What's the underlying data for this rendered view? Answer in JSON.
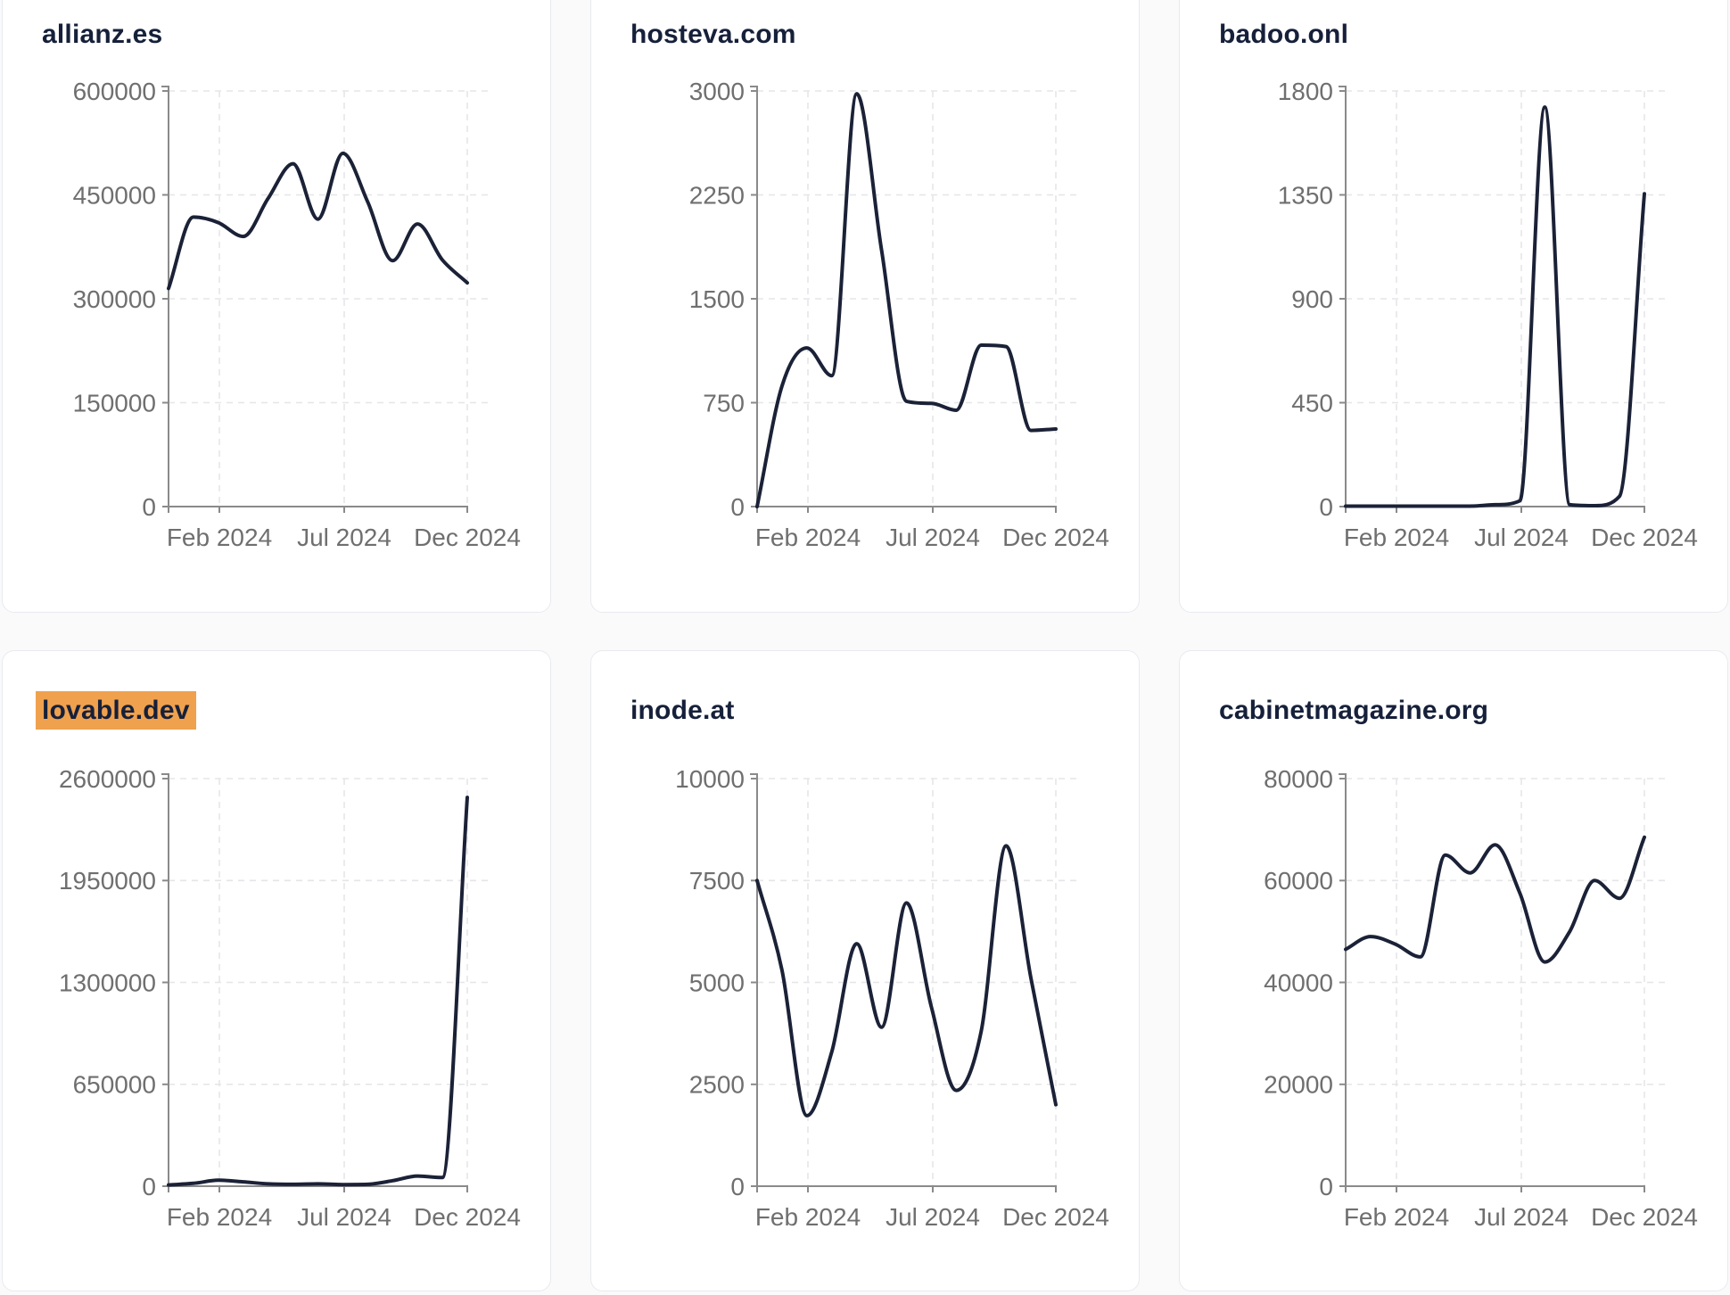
{
  "page": {
    "background": "#fafafa",
    "card_background": "#ffffff",
    "card_border": "#e8eaf0"
  },
  "styles": {
    "line_color": "#1b2237",
    "axis_color": "#8a8a8a",
    "tick_text_color": "#6f6f6f",
    "grid_color": "#e6e6e9",
    "title_color": "#16203a",
    "highlight_color": "#efa14e"
  },
  "x_tick_labels": [
    "Feb 2024",
    "Jul 2024",
    "Dec 2024"
  ],
  "chart_data": [
    {
      "type": "line",
      "title": "allianz.es",
      "highlighted": false,
      "x_months": [
        "Dec 2023",
        "Jan 2024",
        "Feb 2024",
        "Mar 2024",
        "Apr 2024",
        "May 2024",
        "Jun 2024",
        "Jul 2024",
        "Aug 2024",
        "Sep 2024",
        "Oct 2024",
        "Nov 2024",
        "Dec 2024"
      ],
      "values": [
        315000,
        418000,
        410000,
        390000,
        445000,
        495000,
        415000,
        510000,
        440000,
        355000,
        408000,
        356000,
        323000
      ],
      "y_ticks": [
        0,
        150000,
        300000,
        450000,
        600000
      ],
      "ylim": [
        0,
        600000
      ],
      "x_axis_tick_labels": [
        "Feb 2024",
        "Jul 2024",
        "Dec 2024"
      ],
      "grid": true,
      "legend": false
    },
    {
      "type": "line",
      "title": "hosteva.com",
      "highlighted": false,
      "x_months": [
        "Dec 2023",
        "Jan 2024",
        "Feb 2024",
        "Mar 2024",
        "Apr 2024",
        "May 2024",
        "Jun 2024",
        "Jul 2024",
        "Aug 2024",
        "Sep 2024",
        "Oct 2024",
        "Nov 2024",
        "Dec 2024"
      ],
      "values": [
        0,
        870,
        1145,
        945,
        2980,
        1850,
        760,
        745,
        695,
        1165,
        1155,
        550,
        560
      ],
      "y_ticks": [
        0,
        750,
        1500,
        2250,
        3000
      ],
      "ylim": [
        0,
        3000
      ],
      "x_axis_tick_labels": [
        "Feb 2024",
        "Jul 2024",
        "Dec 2024"
      ],
      "grid": true,
      "legend": false
    },
    {
      "type": "line",
      "title": "badoo.onl",
      "highlighted": false,
      "x_months": [
        "Dec 2023",
        "Jan 2024",
        "Feb 2024",
        "Mar 2024",
        "Apr 2024",
        "May 2024",
        "Jun 2024",
        "Jul 2024",
        "Aug 2024",
        "Sep 2024",
        "Oct 2024",
        "Nov 2024",
        "Dec 2024"
      ],
      "values": [
        2,
        2,
        2,
        2,
        2,
        2,
        8,
        25,
        1730,
        8,
        4,
        45,
        1355
      ],
      "y_ticks": [
        0,
        450,
        900,
        1350,
        1800
      ],
      "ylim": [
        0,
        1800
      ],
      "x_axis_tick_labels": [
        "Feb 2024",
        "Jul 2024",
        "Dec 2024"
      ],
      "grid": true,
      "legend": false
    },
    {
      "type": "line",
      "title": "lovable.dev",
      "highlighted": true,
      "x_months": [
        "Dec 2023",
        "Jan 2024",
        "Feb 2024",
        "Mar 2024",
        "Apr 2024",
        "May 2024",
        "Jun 2024",
        "Jul 2024",
        "Aug 2024",
        "Sep 2024",
        "Oct 2024",
        "Nov 2024",
        "Dec 2024"
      ],
      "values": [
        8000,
        18000,
        38000,
        28000,
        15000,
        12000,
        15000,
        10000,
        12000,
        35000,
        65000,
        55000,
        2480000
      ],
      "y_ticks": [
        0,
        650000,
        1300000,
        1950000,
        2600000
      ],
      "ylim": [
        0,
        2600000
      ],
      "x_axis_tick_labels": [
        "Feb 2024",
        "Jul 2024",
        "Dec 2024"
      ],
      "grid": true,
      "legend": false
    },
    {
      "type": "line",
      "title": "inode.at",
      "highlighted": false,
      "x_months": [
        "Dec 2023",
        "Jan 2024",
        "Feb 2024",
        "Mar 2024",
        "Apr 2024",
        "May 2024",
        "Jun 2024",
        "Jul 2024",
        "Aug 2024",
        "Sep 2024",
        "Oct 2024",
        "Nov 2024",
        "Dec 2024"
      ],
      "values": [
        7500,
        5300,
        1730,
        3300,
        5950,
        3900,
        6950,
        4400,
        2350,
        3800,
        8350,
        5100,
        2000
      ],
      "y_ticks": [
        0,
        2500,
        5000,
        7500,
        10000
      ],
      "ylim": [
        0,
        10000
      ],
      "x_axis_tick_labels": [
        "Feb 2024",
        "Jul 2024",
        "Dec 2024"
      ],
      "grid": true,
      "legend": false
    },
    {
      "type": "line",
      "title": "cabinetmagazine.org",
      "highlighted": false,
      "x_months": [
        "Dec 2023",
        "Jan 2024",
        "Feb 2024",
        "Mar 2024",
        "Apr 2024",
        "May 2024",
        "Jun 2024",
        "Jul 2024",
        "Aug 2024",
        "Sep 2024",
        "Oct 2024",
        "Nov 2024",
        "Dec 2024"
      ],
      "values": [
        46500,
        49000,
        47500,
        45000,
        65000,
        61500,
        67000,
        57500,
        44000,
        50000,
        60000,
        56500,
        68500
      ],
      "y_ticks": [
        0,
        20000,
        40000,
        60000,
        80000
      ],
      "ylim": [
        0,
        80000
      ],
      "x_axis_tick_labels": [
        "Feb 2024",
        "Jul 2024",
        "Dec 2024"
      ],
      "grid": true,
      "legend": false
    }
  ]
}
